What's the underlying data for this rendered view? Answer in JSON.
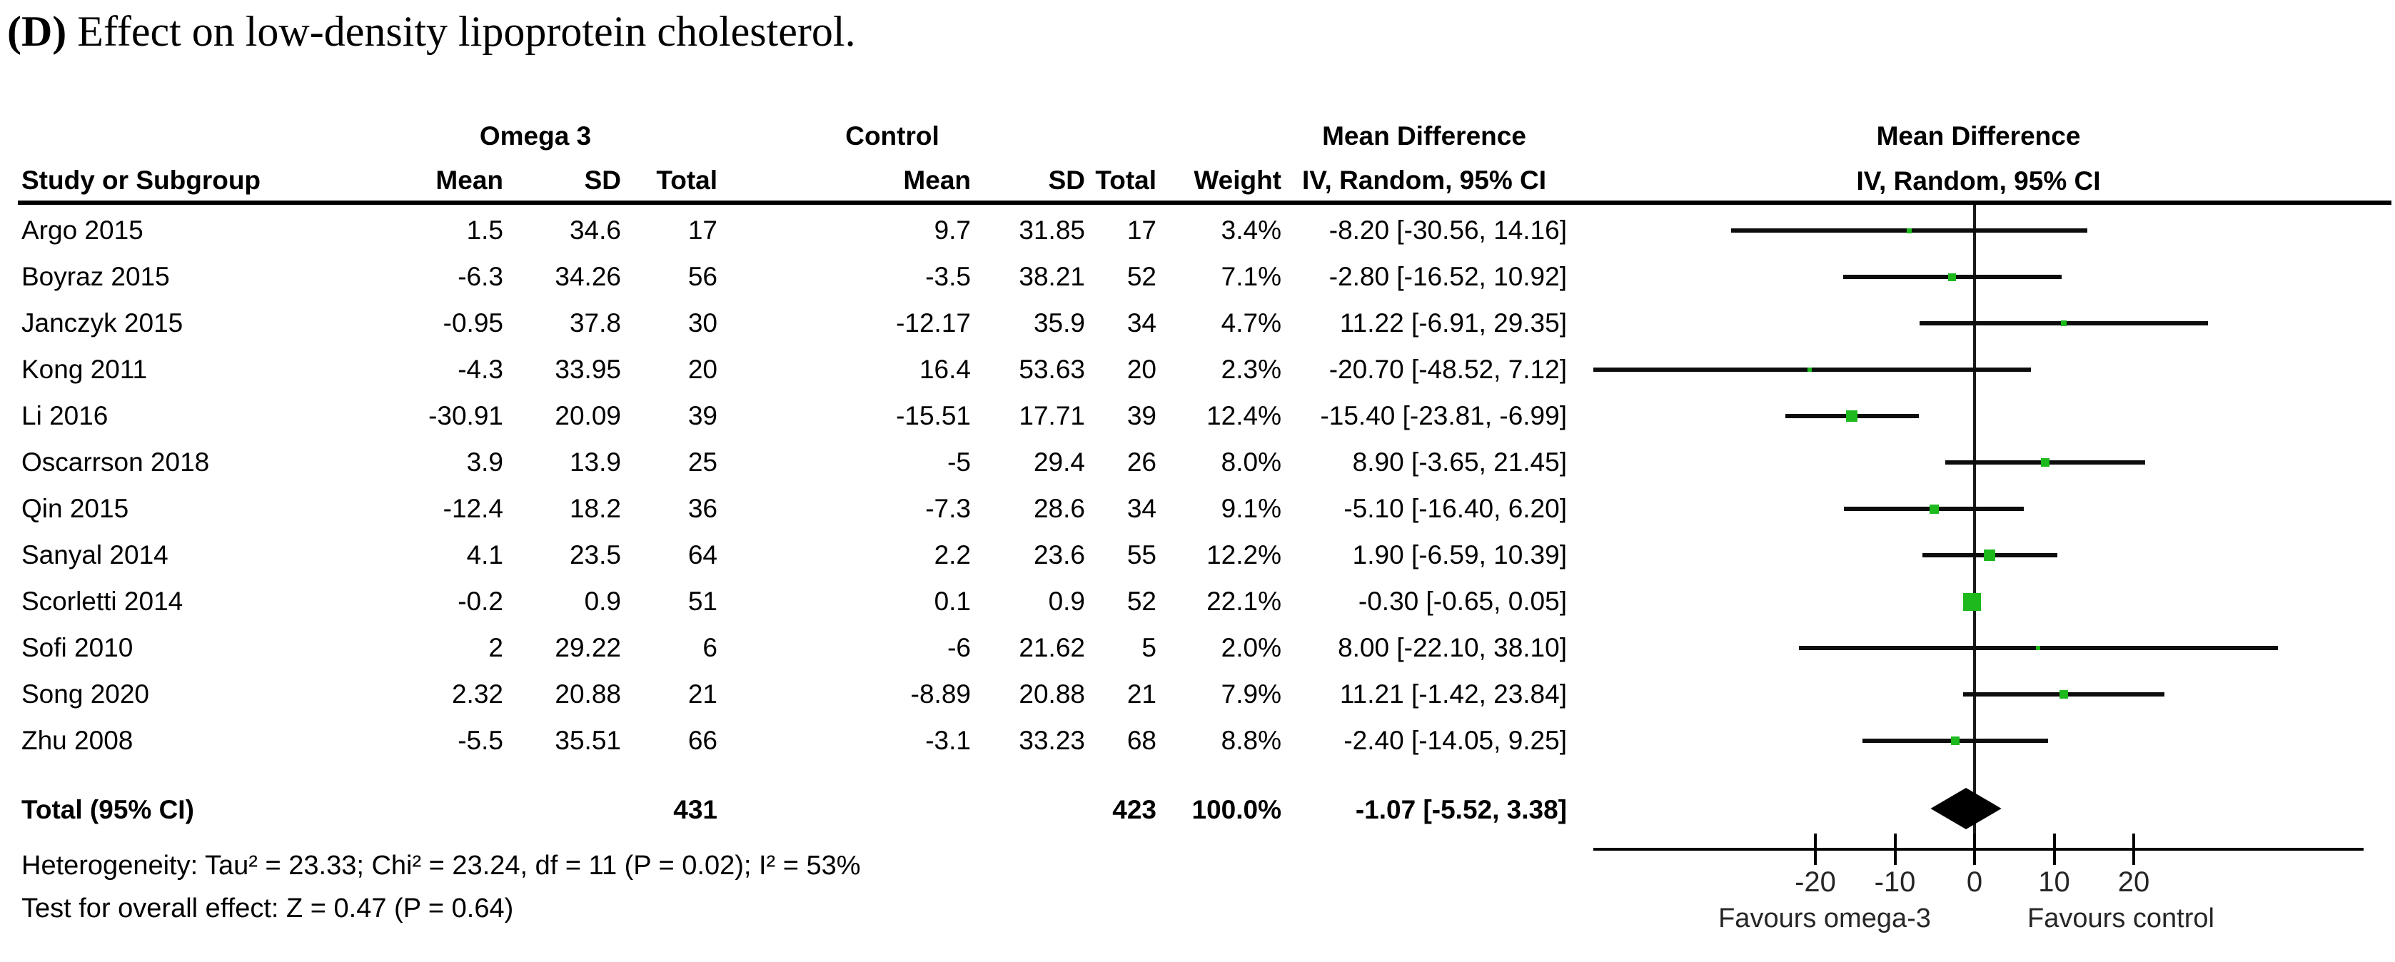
{
  "figure": {
    "title_bold": "(D)",
    "title_rest": " Effect on low-density lipoprotein cholesterol."
  },
  "table": {
    "group_headers": {
      "omega": "Omega 3",
      "control": "Control",
      "md_stat_line1": "Mean Difference",
      "md_stat_line2": "IV, Random, 95% CI",
      "md_plot_line1": "Mean Difference",
      "md_plot_line2": "IV, Random, 95% CI"
    },
    "col_headers": {
      "study": "Study or Subgroup",
      "o_mean": "Mean",
      "o_sd": "SD",
      "o_total": "Total",
      "c_mean": "Mean",
      "c_sd": "SD",
      "c_total": "Total",
      "weight": "Weight"
    },
    "studies": [
      {
        "name": "Argo 2015",
        "o_mean": "1.5",
        "o_sd": "34.6",
        "o_total": "17",
        "c_mean": "9.7",
        "c_sd": "31.85",
        "c_total": "17",
        "weight": "3.4%",
        "md_text": "-8.20 [-30.56, 14.16]",
        "md": -8.2,
        "lo": -30.56,
        "hi": 14.16
      },
      {
        "name": "Boyraz 2015",
        "o_mean": "-6.3",
        "o_sd": "34.26",
        "o_total": "56",
        "c_mean": "-3.5",
        "c_sd": "38.21",
        "c_total": "52",
        "weight": "7.1%",
        "md_text": "-2.80 [-16.52, 10.92]",
        "md": -2.8,
        "lo": -16.52,
        "hi": 10.92
      },
      {
        "name": "Janczyk 2015",
        "o_mean": "-0.95",
        "o_sd": "37.8",
        "o_total": "30",
        "c_mean": "-12.17",
        "c_sd": "35.9",
        "c_total": "34",
        "weight": "4.7%",
        "md_text": "11.22 [-6.91, 29.35]",
        "md": 11.22,
        "lo": -6.91,
        "hi": 29.35
      },
      {
        "name": "Kong 2011",
        "o_mean": "-4.3",
        "o_sd": "33.95",
        "o_total": "20",
        "c_mean": "16.4",
        "c_sd": "53.63",
        "c_total": "20",
        "weight": "2.3%",
        "md_text": "-20.70 [-48.52, 7.12]",
        "md": -20.7,
        "lo": -48.52,
        "hi": 7.12
      },
      {
        "name": "Li 2016",
        "o_mean": "-30.91",
        "o_sd": "20.09",
        "o_total": "39",
        "c_mean": "-15.51",
        "c_sd": "17.71",
        "c_total": "39",
        "weight": "12.4%",
        "md_text": "-15.40 [-23.81, -6.99]",
        "md": -15.4,
        "lo": -23.81,
        "hi": -6.99
      },
      {
        "name": "Oscarrson 2018",
        "o_mean": "3.9",
        "o_sd": "13.9",
        "o_total": "25",
        "c_mean": "-5",
        "c_sd": "29.4",
        "c_total": "26",
        "weight": "8.0%",
        "md_text": "8.90 [-3.65, 21.45]",
        "md": 8.9,
        "lo": -3.65,
        "hi": 21.45
      },
      {
        "name": "Qin 2015",
        "o_mean": "-12.4",
        "o_sd": "18.2",
        "o_total": "36",
        "c_mean": "-7.3",
        "c_sd": "28.6",
        "c_total": "34",
        "weight": "9.1%",
        "md_text": "-5.10 [-16.40, 6.20]",
        "md": -5.1,
        "lo": -16.4,
        "hi": 6.2
      },
      {
        "name": "Sanyal 2014",
        "o_mean": "4.1",
        "o_sd": "23.5",
        "o_total": "64",
        "c_mean": "2.2",
        "c_sd": "23.6",
        "c_total": "55",
        "weight": "12.2%",
        "md_text": "1.90 [-6.59, 10.39]",
        "md": 1.9,
        "lo": -6.59,
        "hi": 10.39
      },
      {
        "name": "Scorletti 2014",
        "o_mean": "-0.2",
        "o_sd": "0.9",
        "o_total": "51",
        "c_mean": "0.1",
        "c_sd": "0.9",
        "c_total": "52",
        "weight": "22.1%",
        "md_text": "-0.30 [-0.65, 0.05]",
        "md": -0.3,
        "lo": -0.65,
        "hi": 0.05
      },
      {
        "name": "Sofi 2010",
        "o_mean": "2",
        "o_sd": "29.22",
        "o_total": "6",
        "c_mean": "-6",
        "c_sd": "21.62",
        "c_total": "5",
        "weight": "2.0%",
        "md_text": "8.00 [-22.10, 38.10]",
        "md": 8.0,
        "lo": -22.1,
        "hi": 38.1
      },
      {
        "name": "Song 2020",
        "o_mean": "2.32",
        "o_sd": "20.88",
        "o_total": "21",
        "c_mean": "-8.89",
        "c_sd": "20.88",
        "c_total": "21",
        "weight": "7.9%",
        "md_text": "11.21 [-1.42, 23.84]",
        "md": 11.21,
        "lo": -1.42,
        "hi": 23.84
      },
      {
        "name": "Zhu 2008",
        "o_mean": "-5.5",
        "o_sd": "35.51",
        "o_total": "66",
        "c_mean": "-3.1",
        "c_sd": "33.23",
        "c_total": "68",
        "weight": "8.8%",
        "md_text": "-2.40 [-14.05, 9.25]",
        "md": -2.4,
        "lo": -14.05,
        "hi": 9.25
      }
    ],
    "total": {
      "label": "Total (95% CI)",
      "o_total": "431",
      "c_total": "423",
      "weight": "100.0%",
      "md_text": "-1.07 [-5.52, 3.38]",
      "md": -1.07,
      "lo": -5.52,
      "hi": 3.38
    },
    "footnotes": [
      "Heterogeneity: Tau² = 23.33; Chi² = 23.24, df = 11 (P = 0.02); I² = 53%",
      "Test for overall effect: Z = 0.47 (P = 0.64)"
    ]
  },
  "plot": {
    "ticks": [
      -20,
      -10,
      0,
      10,
      20
    ],
    "xmin": -48,
    "xmax": 49,
    "favours_left": "Favours omega-3",
    "favours_right": "Favours control",
    "marker_color": "#1db91d",
    "diamond_color": "#000000",
    "line_color": "#0d0d0d"
  },
  "chart_data": {
    "type": "scatter",
    "subtype": "forest-plot-meta-analysis",
    "title": "(D) Effect on low-density lipoprotein cholesterol.",
    "effect_measure": "Mean Difference IV, Random, 95% CI",
    "categories": [
      "Argo 2015",
      "Boyraz 2015",
      "Janczyk 2015",
      "Kong 2011",
      "Li 2016",
      "Oscarrson 2018",
      "Qin 2015",
      "Sanyal 2014",
      "Scorletti 2014",
      "Sofi 2010",
      "Song 2020",
      "Zhu 2008"
    ],
    "series": [
      {
        "name": "Mean Difference",
        "values": [
          -8.2,
          -2.8,
          11.22,
          -20.7,
          -15.4,
          8.9,
          -5.1,
          1.9,
          -0.3,
          8.0,
          11.21,
          -2.4
        ]
      },
      {
        "name": "CI lower",
        "values": [
          -30.56,
          -16.52,
          -6.91,
          -48.52,
          -23.81,
          -3.65,
          -16.4,
          -6.59,
          -0.65,
          -22.1,
          -1.42,
          -14.05
        ]
      },
      {
        "name": "CI upper",
        "values": [
          14.16,
          10.92,
          29.35,
          7.12,
          -6.99,
          21.45,
          6.2,
          10.39,
          0.05,
          38.1,
          23.84,
          9.25
        ]
      },
      {
        "name": "Weight %",
        "values": [
          3.4,
          7.1,
          4.7,
          2.3,
          12.4,
          8.0,
          9.1,
          12.2,
          22.1,
          2.0,
          7.9,
          8.8
        ]
      }
    ],
    "omega3_totals": [
      17,
      56,
      30,
      20,
      39,
      25,
      36,
      64,
      51,
      6,
      21,
      66
    ],
    "control_totals": [
      17,
      52,
      34,
      20,
      39,
      26,
      34,
      55,
      52,
      5,
      21,
      68
    ],
    "pooled": {
      "md": -1.07,
      "ci_low": -5.52,
      "ci_high": 3.38,
      "n_omega3": 431,
      "n_control": 423,
      "weight": "100.0%"
    },
    "heterogeneity": {
      "tau2": 23.33,
      "chi2": 23.24,
      "df": 11,
      "p": 0.02,
      "i2_pct": 53
    },
    "overall_effect": {
      "z": 0.47,
      "p": 0.64
    },
    "xticks": [
      -20,
      -10,
      0,
      10,
      20
    ],
    "xlim": [
      -48,
      49
    ],
    "xlabel_left": "Favours omega-3",
    "xlabel_right": "Favours control",
    "legend_position": "none",
    "grid": false
  }
}
